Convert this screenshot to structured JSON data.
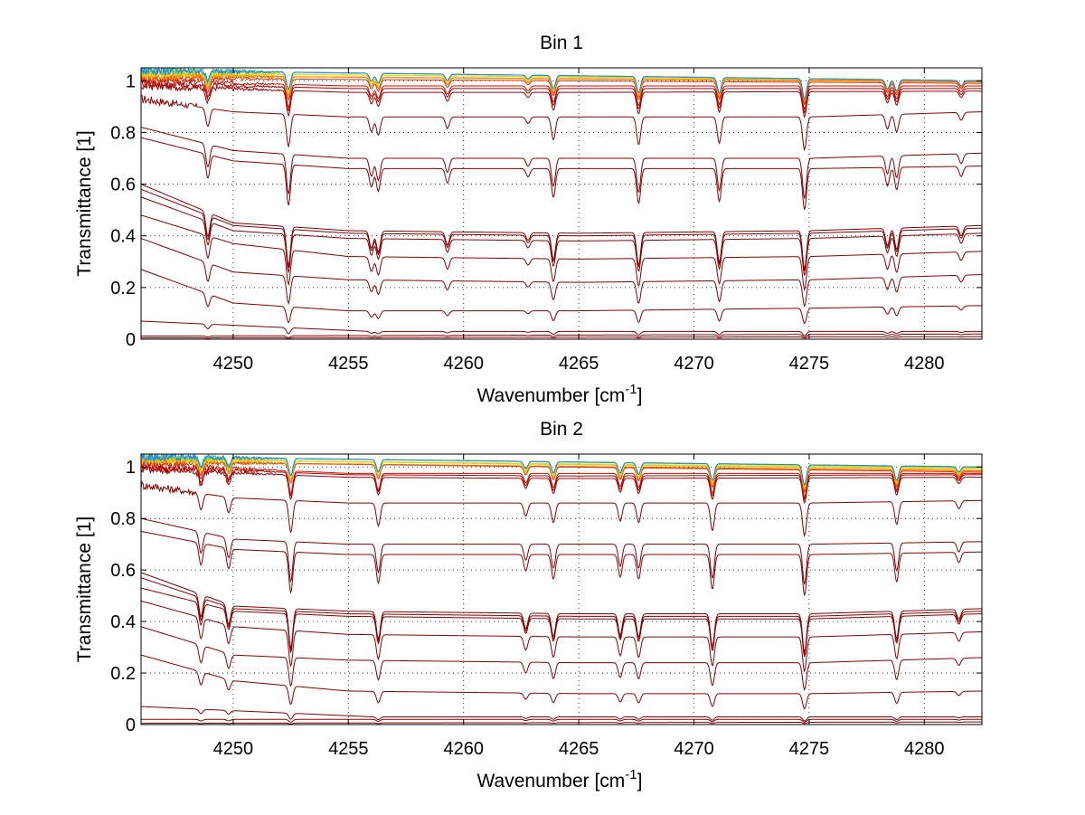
{
  "chart_data": [
    {
      "type": "line",
      "title": "Bin 1",
      "xlabel_main": "Wavenumber [cm",
      "xlabel_sup": "-1",
      "xlabel_end": "]",
      "ylabel": "Transmittance [1]",
      "xlim": [
        4246,
        4282.5
      ],
      "ylim": [
        0,
        1.05
      ],
      "xticks": [
        4250,
        4255,
        4260,
        4265,
        4270,
        4275,
        4280
      ],
      "yticks": [
        0,
        0.2,
        0.4,
        0.6,
        0.8,
        1
      ],
      "ytick_labels": [
        "0",
        "0.2",
        "0.4",
        "0.6",
        "0.8",
        "1"
      ],
      "grid": true,
      "absorption_lines": [
        {
          "x": 4248.9,
          "depth": 0.6
        },
        {
          "x": 4252.4,
          "depth": 1.0
        },
        {
          "x": 4256.0,
          "depth": 0.45
        },
        {
          "x": 4256.3,
          "depth": 0.55
        },
        {
          "x": 4259.3,
          "depth": 0.35
        },
        {
          "x": 4262.8,
          "depth": 0.2
        },
        {
          "x": 4263.9,
          "depth": 0.7
        },
        {
          "x": 4267.6,
          "depth": 0.85
        },
        {
          "x": 4271.1,
          "depth": 0.8
        },
        {
          "x": 4274.8,
          "depth": 1.0
        },
        {
          "x": 4278.4,
          "depth": 0.45
        },
        {
          "x": 4278.8,
          "depth": 0.55
        },
        {
          "x": 4281.6,
          "depth": 0.25
        }
      ],
      "series": [
        {
          "color": "#8b0000",
          "values_at": [
            [
              4246,
              0.005
            ],
            [
              4282.5,
              0.01
            ]
          ]
        },
        {
          "color": "#8b0000",
          "values_at": [
            [
              4246,
              0.012
            ],
            [
              4282.5,
              0.02
            ]
          ]
        },
        {
          "color": "#8b0000",
          "values_at": [
            [
              4246,
              0.07
            ],
            [
              4256,
              0.03
            ],
            [
              4282.5,
              0.03
            ]
          ]
        },
        {
          "color": "#8b0000",
          "values_at": [
            [
              4246,
              0.27
            ],
            [
              4250,
              0.14
            ],
            [
              4255,
              0.11
            ],
            [
              4265,
              0.11
            ],
            [
              4275,
              0.12
            ],
            [
              4282.5,
              0.13
            ]
          ]
        },
        {
          "color": "#8b0000",
          "values_at": [
            [
              4246,
              0.39
            ],
            [
              4250,
              0.26
            ],
            [
              4255,
              0.23
            ],
            [
              4265,
              0.22
            ],
            [
              4275,
              0.23
            ],
            [
              4282.5,
              0.25
            ]
          ]
        },
        {
          "color": "#8b0000",
          "values_at": [
            [
              4246,
              0.48
            ],
            [
              4250,
              0.37
            ],
            [
              4255,
              0.32
            ],
            [
              4265,
              0.31
            ],
            [
              4275,
              0.32
            ],
            [
              4282.5,
              0.34
            ]
          ]
        },
        {
          "color": "#8b0000",
          "values_at": [
            [
              4246,
              0.55
            ],
            [
              4250,
              0.42
            ],
            [
              4255,
              0.39
            ],
            [
              4265,
              0.38
            ],
            [
              4275,
              0.39
            ],
            [
              4282.5,
              0.41
            ]
          ]
        },
        {
          "color": "#8b0000",
          "values_at": [
            [
              4246,
              0.58
            ],
            [
              4250,
              0.44
            ],
            [
              4255,
              0.41
            ],
            [
              4265,
              0.4
            ],
            [
              4275,
              0.41
            ],
            [
              4282.5,
              0.43
            ]
          ]
        },
        {
          "color": "#8b0000",
          "values_at": [
            [
              4246,
              0.6
            ],
            [
              4250,
              0.45
            ],
            [
              4255,
              0.42
            ],
            [
              4265,
              0.41
            ],
            [
              4275,
              0.42
            ],
            [
              4282.5,
              0.44
            ]
          ]
        },
        {
          "color": "#8b0000",
          "values_at": [
            [
              4246,
              0.78
            ],
            [
              4250,
              0.69
            ],
            [
              4255,
              0.66
            ],
            [
              4265,
              0.66
            ],
            [
              4275,
              0.66
            ],
            [
              4282.5,
              0.67
            ]
          ]
        },
        {
          "color": "#8b0000",
          "values_at": [
            [
              4246,
              0.82
            ],
            [
              4250,
              0.73
            ],
            [
              4255,
              0.7
            ],
            [
              4265,
              0.7
            ],
            [
              4275,
              0.7
            ],
            [
              4282.5,
              0.72
            ]
          ]
        },
        {
          "color": "#8b0000",
          "values_at": [
            [
              4246,
              0.93
            ],
            [
              4250,
              0.88
            ],
            [
              4255,
              0.86
            ],
            [
              4265,
              0.86
            ],
            [
              4275,
              0.86
            ],
            [
              4282.5,
              0.88
            ]
          ]
        },
        {
          "color": "#a00000",
          "values_at": [
            [
              4246,
              0.98
            ],
            [
              4255,
              0.955
            ],
            [
              4265,
              0.955
            ],
            [
              4282.5,
              0.96
            ]
          ]
        },
        {
          "color": "#b00000",
          "values_at": [
            [
              4246,
              0.99
            ],
            [
              4255,
              0.97
            ],
            [
              4265,
              0.97
            ],
            [
              4282.5,
              0.97
            ]
          ]
        },
        {
          "color": "#cc1100",
          "values_at": [
            [
              4246,
              1.0
            ],
            [
              4255,
              0.98
            ],
            [
              4265,
              0.98
            ],
            [
              4282.5,
              0.98
            ]
          ]
        },
        {
          "color": "#e03000",
          "values_at": [
            [
              4246,
              1.01
            ],
            [
              4282.5,
              0.99
            ]
          ]
        },
        {
          "color": "#f26000",
          "values_at": [
            [
              4246,
              1.02
            ],
            [
              4282.5,
              0.995
            ]
          ]
        },
        {
          "color": "#f99000",
          "values_at": [
            [
              4246,
              1.02
            ],
            [
              4282.5,
              0.998
            ]
          ]
        },
        {
          "color": "#fcc000",
          "values_at": [
            [
              4246,
              1.03
            ],
            [
              4282.5,
              1.0
            ]
          ]
        },
        {
          "color": "#d8e000",
          "values_at": [
            [
              4246,
              1.03
            ],
            [
              4282.5,
              1.0
            ]
          ]
        },
        {
          "color": "#7fd040",
          "values_at": [
            [
              4246,
              1.04
            ],
            [
              4282.5,
              1.0
            ]
          ]
        },
        {
          "color": "#40c0c0",
          "values_at": [
            [
              4246,
              1.04
            ],
            [
              4282.5,
              1.0
            ]
          ]
        },
        {
          "color": "#2080e0",
          "values_at": [
            [
              4246,
              1.04
            ],
            [
              4282.5,
              1.0
            ]
          ]
        }
      ]
    },
    {
      "type": "line",
      "title": "Bin 2",
      "xlabel_main": "Wavenumber [cm",
      "xlabel_sup": "-1",
      "xlabel_end": "]",
      "ylabel": "Transmittance [1]",
      "xlim": [
        4246,
        4282.5
      ],
      "ylim": [
        0,
        1.05
      ],
      "xticks": [
        4250,
        4255,
        4260,
        4265,
        4270,
        4275,
        4280
      ],
      "yticks": [
        0,
        0.2,
        0.4,
        0.6,
        0.8,
        1
      ],
      "ytick_labels": [
        "0",
        "0.2",
        "0.4",
        "0.6",
        "0.8",
        "1"
      ],
      "grid": true,
      "absorption_lines": [
        {
          "x": 4248.6,
          "depth": 0.55
        },
        {
          "x": 4249.8,
          "depth": 0.5
        },
        {
          "x": 4252.5,
          "depth": 1.0
        },
        {
          "x": 4256.3,
          "depth": 0.7
        },
        {
          "x": 4262.7,
          "depth": 0.4
        },
        {
          "x": 4263.9,
          "depth": 0.6
        },
        {
          "x": 4266.8,
          "depth": 0.55
        },
        {
          "x": 4267.6,
          "depth": 0.6
        },
        {
          "x": 4270.8,
          "depth": 0.85
        },
        {
          "x": 4274.8,
          "depth": 1.0
        },
        {
          "x": 4278.8,
          "depth": 0.7
        },
        {
          "x": 4281.5,
          "depth": 0.25
        }
      ],
      "series": [
        {
          "color": "#8b0000",
          "values_at": [
            [
              4246,
              0.005
            ],
            [
              4282.5,
              0.01
            ]
          ]
        },
        {
          "color": "#8b0000",
          "values_at": [
            [
              4246,
              0.02
            ],
            [
              4282.5,
              0.02
            ]
          ]
        },
        {
          "color": "#8b0000",
          "values_at": [
            [
              4246,
              0.07
            ],
            [
              4256,
              0.03
            ],
            [
              4282.5,
              0.03
            ]
          ]
        },
        {
          "color": "#8b0000",
          "values_at": [
            [
              4246,
              0.27
            ],
            [
              4250,
              0.17
            ],
            [
              4255,
              0.13
            ],
            [
              4265,
              0.12
            ],
            [
              4275,
              0.12
            ],
            [
              4282.5,
              0.13
            ]
          ]
        },
        {
          "color": "#8b0000",
          "values_at": [
            [
              4246,
              0.38
            ],
            [
              4250,
              0.27
            ],
            [
              4255,
              0.25
            ],
            [
              4265,
              0.24
            ],
            [
              4275,
              0.24
            ],
            [
              4282.5,
              0.26
            ]
          ]
        },
        {
          "color": "#8b0000",
          "values_at": [
            [
              4246,
              0.48
            ],
            [
              4250,
              0.38
            ],
            [
              4255,
              0.35
            ],
            [
              4265,
              0.34
            ],
            [
              4275,
              0.34
            ],
            [
              4282.5,
              0.36
            ]
          ]
        },
        {
          "color": "#8b0000",
          "values_at": [
            [
              4246,
              0.53
            ],
            [
              4250,
              0.44
            ],
            [
              4255,
              0.42
            ],
            [
              4265,
              0.41
            ],
            [
              4275,
              0.41
            ],
            [
              4282.5,
              0.43
            ]
          ]
        },
        {
          "color": "#8b0000",
          "values_at": [
            [
              4246,
              0.57
            ],
            [
              4250,
              0.45
            ],
            [
              4255,
              0.43
            ],
            [
              4265,
              0.42
            ],
            [
              4275,
              0.42
            ],
            [
              4282.5,
              0.44
            ]
          ]
        },
        {
          "color": "#8b0000",
          "values_at": [
            [
              4246,
              0.59
            ],
            [
              4250,
              0.46
            ],
            [
              4255,
              0.44
            ],
            [
              4265,
              0.43
            ],
            [
              4275,
              0.43
            ],
            [
              4282.5,
              0.45
            ]
          ]
        },
        {
          "color": "#8b0000",
          "values_at": [
            [
              4246,
              0.75
            ],
            [
              4250,
              0.68
            ],
            [
              4255,
              0.66
            ],
            [
              4265,
              0.66
            ],
            [
              4275,
              0.66
            ],
            [
              4282.5,
              0.67
            ]
          ]
        },
        {
          "color": "#8b0000",
          "values_at": [
            [
              4246,
              0.8
            ],
            [
              4250,
              0.72
            ],
            [
              4255,
              0.7
            ],
            [
              4265,
              0.7
            ],
            [
              4275,
              0.7
            ],
            [
              4282.5,
              0.71
            ]
          ]
        },
        {
          "color": "#8b0000",
          "values_at": [
            [
              4246,
              0.93
            ],
            [
              4250,
              0.88
            ],
            [
              4255,
              0.86
            ],
            [
              4265,
              0.86
            ],
            [
              4275,
              0.86
            ],
            [
              4282.5,
              0.87
            ]
          ]
        },
        {
          "color": "#a00000",
          "values_at": [
            [
              4246,
              0.99
            ],
            [
              4255,
              0.96
            ],
            [
              4265,
              0.955
            ],
            [
              4282.5,
              0.96
            ]
          ]
        },
        {
          "color": "#b00000",
          "values_at": [
            [
              4246,
              1.0
            ],
            [
              4255,
              0.97
            ],
            [
              4265,
              0.965
            ],
            [
              4282.5,
              0.97
            ]
          ]
        },
        {
          "color": "#cc1100",
          "values_at": [
            [
              4246,
              1.01
            ],
            [
              4255,
              0.975
            ],
            [
              4265,
              0.975
            ],
            [
              4282.5,
              0.975
            ]
          ]
        },
        {
          "color": "#e03000",
          "values_at": [
            [
              4246,
              1.02
            ],
            [
              4282.5,
              0.98
            ]
          ]
        },
        {
          "color": "#f26000",
          "values_at": [
            [
              4246,
              1.02
            ],
            [
              4282.5,
              0.985
            ]
          ]
        },
        {
          "color": "#f99000",
          "values_at": [
            [
              4246,
              1.03
            ],
            [
              4282.5,
              0.99
            ]
          ]
        },
        {
          "color": "#fcc000",
          "values_at": [
            [
              4246,
              1.03
            ],
            [
              4282.5,
              0.99
            ]
          ]
        },
        {
          "color": "#d8e000",
          "values_at": [
            [
              4246,
              1.03
            ],
            [
              4282.5,
              0.995
            ]
          ]
        },
        {
          "color": "#7fd040",
          "values_at": [
            [
              4246,
              1.04
            ],
            [
              4282.5,
              0.998
            ]
          ]
        },
        {
          "color": "#40c0c0",
          "values_at": [
            [
              4246,
              1.04
            ],
            [
              4282.5,
              1.0
            ]
          ]
        },
        {
          "color": "#2080e0",
          "values_at": [
            [
              4246,
              1.04
            ],
            [
              4282.5,
              1.0
            ]
          ]
        }
      ]
    }
  ]
}
